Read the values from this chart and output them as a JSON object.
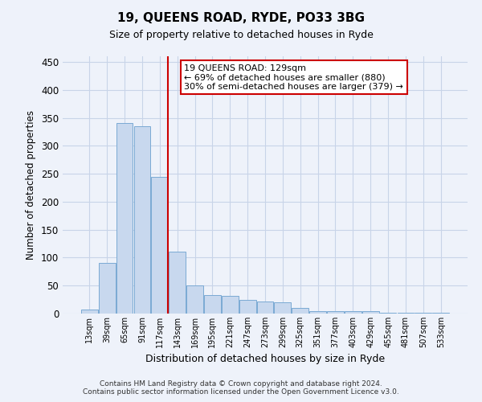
{
  "title": "19, QUEENS ROAD, RYDE, PO33 3BG",
  "subtitle": "Size of property relative to detached houses in Ryde",
  "xlabel": "Distribution of detached houses by size in Ryde",
  "ylabel": "Number of detached properties",
  "bin_labels": [
    "13sqm",
    "39sqm",
    "65sqm",
    "91sqm",
    "117sqm",
    "143sqm",
    "169sqm",
    "195sqm",
    "221sqm",
    "247sqm",
    "273sqm",
    "299sqm",
    "325sqm",
    "351sqm",
    "377sqm",
    "403sqm",
    "429sqm",
    "455sqm",
    "481sqm",
    "507sqm",
    "533sqm"
  ],
  "bar_heights": [
    7,
    90,
    340,
    335,
    245,
    110,
    50,
    33,
    32,
    25,
    21,
    20,
    10,
    5,
    4,
    4,
    4,
    2,
    2,
    2,
    2
  ],
  "bar_color": "#c8d8ee",
  "bar_edge_color": "#7baad4",
  "bar_edge_width": 0.7,
  "marker_line_color": "#cc0000",
  "annotation_line1": "19 QUEENS ROAD: 129sqm",
  "annotation_line2": "← 69% of detached houses are smaller (880)",
  "annotation_line3": "30% of semi-detached houses are larger (379) →",
  "annotation_box_color": "white",
  "annotation_box_edge_color": "#cc0000",
  "ylim": [
    0,
    460
  ],
  "yticks": [
    0,
    50,
    100,
    150,
    200,
    250,
    300,
    350,
    400,
    450
  ],
  "grid_color": "#c8d4e8",
  "footer_line1": "Contains HM Land Registry data © Crown copyright and database right 2024.",
  "footer_line2": "Contains public sector information licensed under the Open Government Licence v3.0.",
  "bg_color": "#eef2fa",
  "plot_bg_color": "#eef2fa"
}
